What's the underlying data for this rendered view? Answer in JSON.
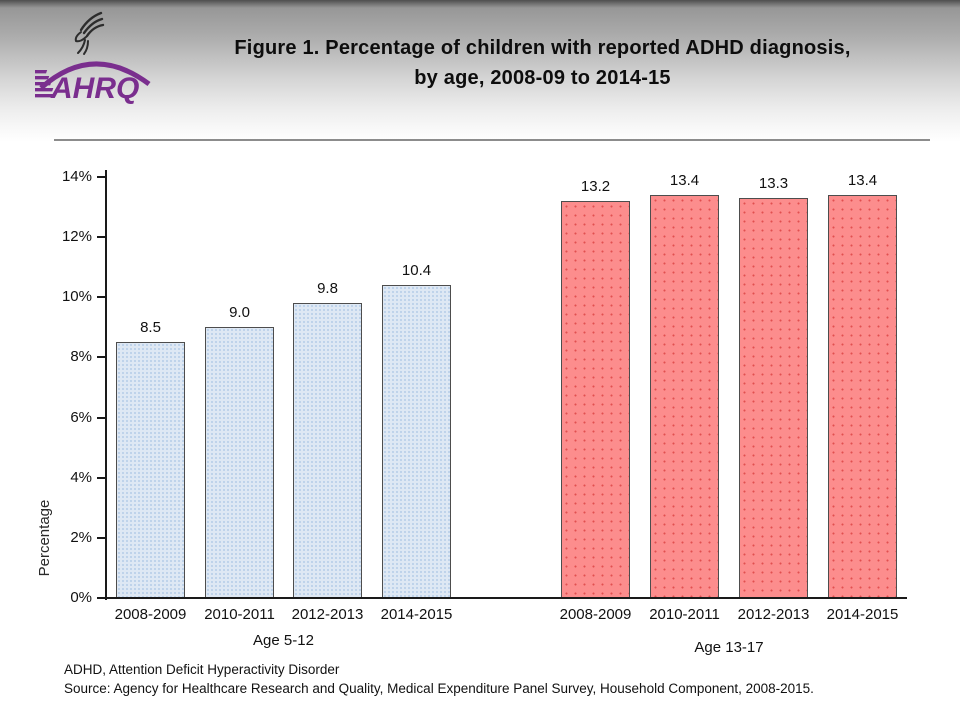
{
  "slide": {
    "title_line1": "Figure 1. Percentage of children with reported ADHD diagnosis,",
    "title_line2": "by age, 2008-09 to 2014-15",
    "footnote_line1": "ADHD, Attention Deficit Hyperactivity Disorder",
    "footnote_line2": "Source: Agency for Healthcare Research and Quality, Medical Expenditure Panel Survey, Household Component, 2008-2015."
  },
  "logo": {
    "text": "AHRQ",
    "brand_color": "#7A2E8E"
  },
  "chart_data": {
    "type": "bar",
    "title": "Figure 1. Percentage of children with reported ADHD diagnosis, by age, 2008-09 to 2014-15",
    "xlabel": "",
    "ylabel": "Percentage",
    "ylim": [
      0,
      14
    ],
    "ytick_step": 2,
    "yticks": [
      "0%",
      "2%",
      "4%",
      "6%",
      "8%",
      "10%",
      "12%",
      "14%"
    ],
    "grid": false,
    "legend": "none",
    "groups": [
      {
        "label": "Age 5-12",
        "categories": [
          "2008-2009",
          "2010-2011",
          "2012-2013",
          "2014-2015"
        ],
        "values": [
          8.5,
          9.0,
          9.8,
          10.4
        ],
        "value_labels": [
          "8.5",
          "9.0",
          "9.8",
          "10.4"
        ],
        "bar_fill": "#DEE8F4",
        "bar_dot": "#B9CFE9",
        "bar_border": "#4D4D4D"
      },
      {
        "label": "Age 13-17",
        "categories": [
          "2008-2009",
          "2010-2011",
          "2012-2013",
          "2014-2015"
        ],
        "values": [
          13.2,
          13.4,
          13.3,
          13.4
        ],
        "value_labels": [
          "13.2",
          "13.4",
          "13.3",
          "13.4"
        ],
        "bar_fill": "#FC8D8D",
        "bar_dot": "#E14F4F",
        "bar_border": "#4D4D4D"
      }
    ]
  }
}
